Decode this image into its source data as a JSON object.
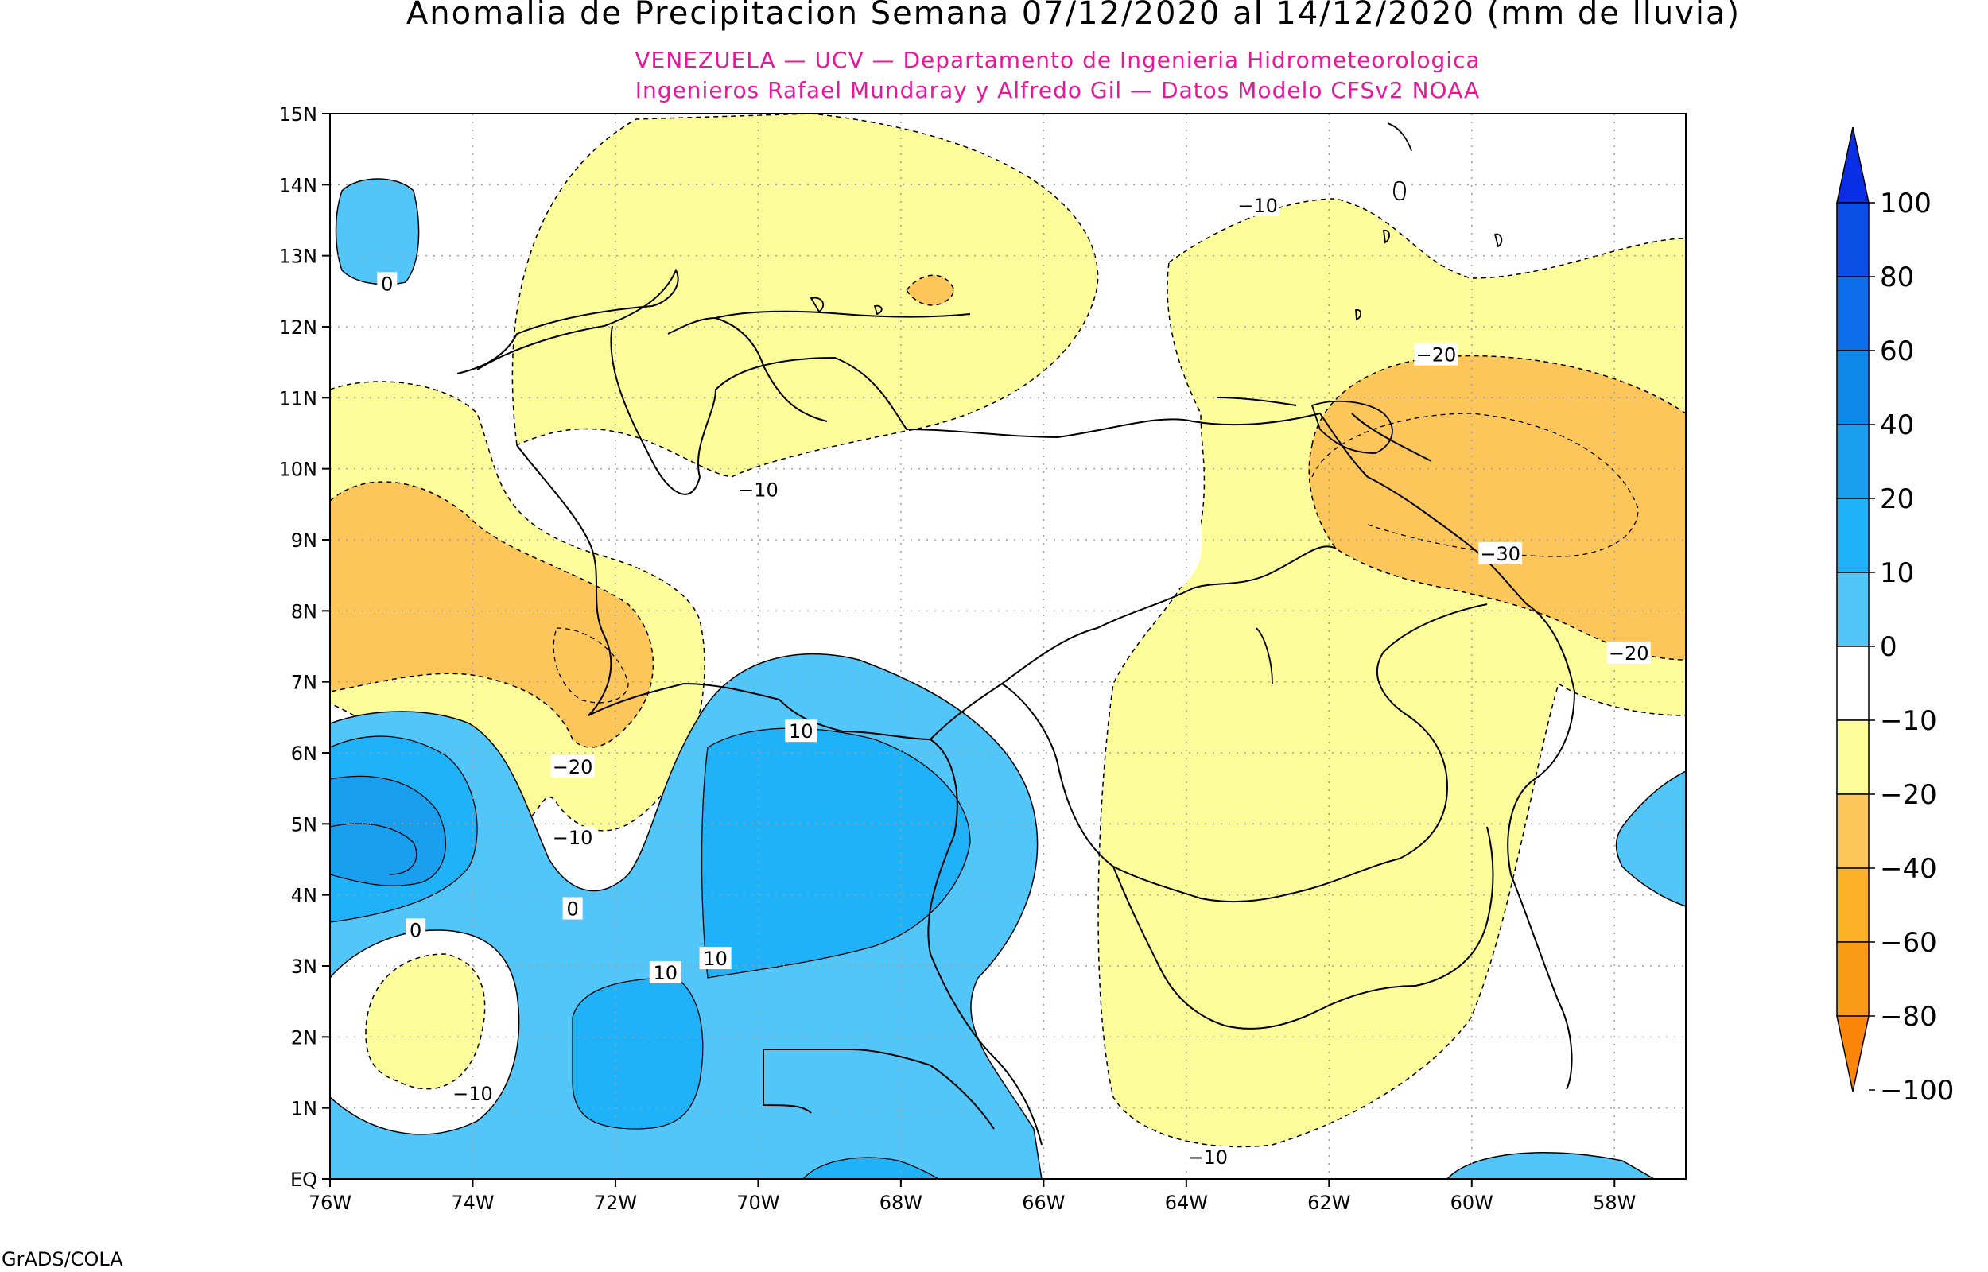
{
  "title": "Anomalia de Precipitacion Semana 07/12/2020 al 14/12/2020 (mm de lluvia)",
  "subtitle_line1": "VENEZUELA — UCV — Departamento de Ingenieria Hidrometeorologica",
  "subtitle_line2": "Ingenieros Rafael Mundaray y Alfredo Gil — Datos Modelo CFSv2 NOAA",
  "footer": "GrADS/COLA",
  "colors": {
    "title": "#000000",
    "subtitle": "#e8179a",
    "frame": "#000000",
    "grid": "#a0a0a0",
    "coast": "#000000"
  },
  "map": {
    "lon_range": [
      -76,
      -57
    ],
    "lat_range": [
      0,
      15
    ],
    "lon_ticks": [
      "76W",
      "74W",
      "72W",
      "70W",
      "68W",
      "66W",
      "64W",
      "62W",
      "60W",
      "58W"
    ],
    "lat_ticks": [
      "EQ",
      "1N",
      "2N",
      "3N",
      "4N",
      "5N",
      "6N",
      "7N",
      "8N",
      "9N",
      "10N",
      "11N",
      "12N",
      "13N",
      "14N",
      "15N"
    ],
    "contour_labels": [
      {
        "text": "0",
        "lon": -75.2,
        "lat": 12.6
      },
      {
        "text": "−10",
        "lon": -63.0,
        "lat": 13.7
      },
      {
        "text": "−20",
        "lon": -60.5,
        "lat": 11.6
      },
      {
        "text": "−10",
        "lon": -70.0,
        "lat": 9.7
      },
      {
        "text": "−30",
        "lon": -59.6,
        "lat": 8.8
      },
      {
        "text": "−20",
        "lon": -57.8,
        "lat": 7.4
      },
      {
        "text": "10",
        "lon": -69.4,
        "lat": 6.3
      },
      {
        "text": "−20",
        "lon": -72.6,
        "lat": 5.8
      },
      {
        "text": "−10",
        "lon": -72.6,
        "lat": 4.8
      },
      {
        "text": "0",
        "lon": -72.6,
        "lat": 3.8
      },
      {
        "text": "0",
        "lon": -74.8,
        "lat": 3.5
      },
      {
        "text": "10",
        "lon": -70.6,
        "lat": 3.1
      },
      {
        "text": "10",
        "lon": -71.3,
        "lat": 2.9
      },
      {
        "text": "−10",
        "lon": -74.0,
        "lat": 1.2
      },
      {
        "text": "−10",
        "lon": -63.7,
        "lat": 0.3
      }
    ]
  },
  "legend": {
    "labels": [
      "100",
      "80",
      "60",
      "40",
      "20",
      "10",
      "0",
      "−10",
      "−20",
      "−40",
      "−60",
      "−80",
      "−100"
    ],
    "colors": [
      "#0a2ee6",
      "#0b50e6",
      "#0c6ee8",
      "#0e88ea",
      "#1a9eee",
      "#20b2f8",
      "#52c6f8",
      "#ffffff",
      "#fcfc9a",
      "#fcc65a",
      "#fcb228",
      "#fb9c16",
      "#fc860a"
    ]
  }
}
